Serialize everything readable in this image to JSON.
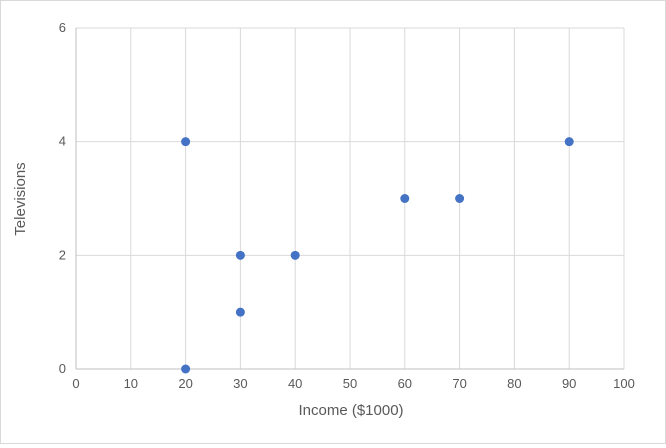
{
  "chart_data": {
    "type": "scatter",
    "title": "",
    "xlabel": "Income ($1000)",
    "ylabel": "Televisions",
    "points": [
      {
        "x": 20,
        "y": 4
      },
      {
        "x": 20,
        "y": 0
      },
      {
        "x": 30,
        "y": 2
      },
      {
        "x": 30,
        "y": 1
      },
      {
        "x": 40,
        "y": 2
      },
      {
        "x": 60,
        "y": 3
      },
      {
        "x": 70,
        "y": 3
      },
      {
        "x": 90,
        "y": 4
      }
    ],
    "xlim": [
      0,
      100
    ],
    "ylim": [
      0,
      6
    ],
    "x_ticks": [
      0,
      10,
      20,
      30,
      40,
      50,
      60,
      70,
      80,
      90,
      100
    ],
    "y_ticks": [
      0,
      2,
      4,
      6
    ],
    "grid": true,
    "legend": "none",
    "marker_color": "#4472C4",
    "gridline_color": "#D9D9D9",
    "axis_color": "#BFBFBF",
    "tick_label_color": "#595959",
    "axis_title_color": "#595959"
  }
}
